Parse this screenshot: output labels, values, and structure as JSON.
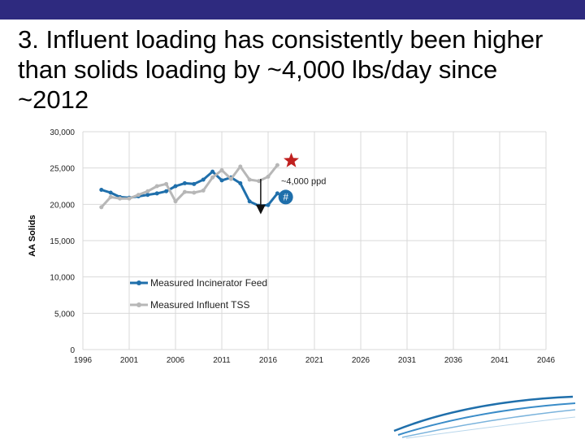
{
  "slide": {
    "title": "3. Influent loading has consistently been higher than solids loading by ~4,000 lbs/day since ~2012",
    "colors": {
      "banner": "#2e2a7f",
      "series1": "#1f6fab",
      "series2": "#b7b7b7",
      "star": "#c0201f",
      "badge": "#1f6fab"
    }
  },
  "chart_data": {
    "type": "line",
    "ylabel": "AA Solids",
    "xlim": [
      1996,
      2046
    ],
    "ylim": [
      0,
      30000
    ],
    "x_ticks": [
      "1996",
      "2001",
      "2006",
      "2011",
      "2016",
      "2021",
      "2026",
      "2031",
      "2036",
      "2041",
      "2046"
    ],
    "y_ticks": [
      "0",
      "5,000",
      "10,000",
      "15,000",
      "20,000",
      "25,000",
      "30,000"
    ],
    "gridlines": true,
    "legend_position": "center",
    "series": [
      {
        "name": "Measured Incinerator Feed",
        "color": "#1f6fab",
        "points": [
          [
            1998,
            22000
          ],
          [
            1999,
            21600
          ],
          [
            2000,
            21000
          ],
          [
            2001,
            20900
          ],
          [
            2002,
            21100
          ],
          [
            2003,
            21300
          ],
          [
            2004,
            21500
          ],
          [
            2005,
            21800
          ],
          [
            2006,
            22500
          ],
          [
            2007,
            22900
          ],
          [
            2008,
            22800
          ],
          [
            2009,
            23400
          ],
          [
            2010,
            24500
          ],
          [
            2011,
            23300
          ],
          [
            2012,
            23700
          ],
          [
            2013,
            22900
          ],
          [
            2014,
            20400
          ],
          [
            2015,
            19800
          ],
          [
            2016,
            19900
          ],
          [
            2017,
            21500
          ]
        ]
      },
      {
        "name": "Measured Influent TSS",
        "color": "#b7b7b7",
        "points": [
          [
            1998,
            19600
          ],
          [
            1999,
            21000
          ],
          [
            2000,
            20800
          ],
          [
            2001,
            20800
          ],
          [
            2002,
            21300
          ],
          [
            2003,
            21800
          ],
          [
            2004,
            22500
          ],
          [
            2005,
            22800
          ],
          [
            2006,
            20400
          ],
          [
            2007,
            21700
          ],
          [
            2008,
            21600
          ],
          [
            2009,
            21900
          ],
          [
            2010,
            23700
          ],
          [
            2011,
            24700
          ],
          [
            2012,
            23500
          ],
          [
            2013,
            25200
          ],
          [
            2014,
            23400
          ],
          [
            2015,
            23200
          ],
          [
            2016,
            23800
          ],
          [
            2017,
            25400
          ]
        ]
      }
    ],
    "annotations": {
      "star": {
        "x": 2018.5,
        "y": 26000
      },
      "arrow_label": "~4,000 ppd",
      "badge_label": "#"
    }
  }
}
